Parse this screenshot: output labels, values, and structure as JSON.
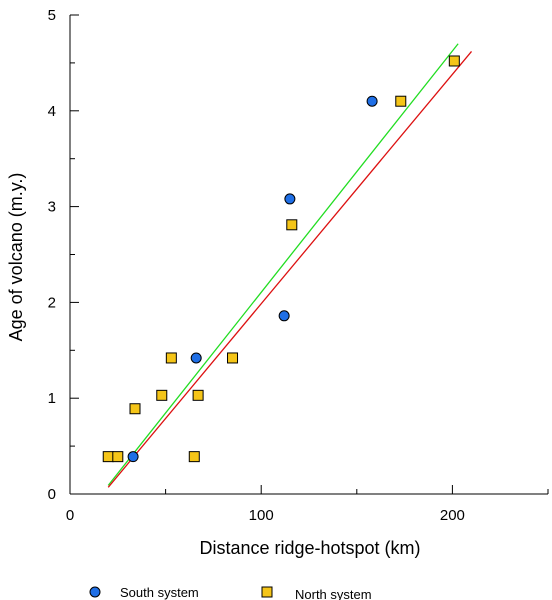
{
  "chart_data": {
    "type": "scatter",
    "xlabel": "Distance ridge-hotspot (km)",
    "ylabel": "Age of volcano (m.y.)",
    "xlim": [
      0,
      250
    ],
    "ylim": [
      0,
      5
    ],
    "xticks": [
      0,
      100,
      200
    ],
    "yticks": [
      0,
      1,
      2,
      3,
      4,
      5
    ],
    "grid": false,
    "legend_position": "bottom",
    "series": [
      {
        "name": "South system",
        "marker": "circle",
        "color": "#1f6fe6",
        "points": [
          {
            "x": 33,
            "y": 0.39
          },
          {
            "x": 66,
            "y": 1.42
          },
          {
            "x": 112,
            "y": 1.86
          },
          {
            "x": 115,
            "y": 3.08
          },
          {
            "x": 158,
            "y": 4.1
          }
        ]
      },
      {
        "name": "North system",
        "marker": "square",
        "color": "#f5c518",
        "points": [
          {
            "x": 20,
            "y": 0.39
          },
          {
            "x": 25,
            "y": 0.39
          },
          {
            "x": 34,
            "y": 0.89
          },
          {
            "x": 48,
            "y": 1.03
          },
          {
            "x": 53,
            "y": 1.42
          },
          {
            "x": 65,
            "y": 0.39
          },
          {
            "x": 67,
            "y": 1.03
          },
          {
            "x": 85,
            "y": 1.42
          },
          {
            "x": 116,
            "y": 2.81
          },
          {
            "x": 173,
            "y": 4.1
          },
          {
            "x": 201,
            "y": 4.52
          }
        ]
      }
    ],
    "fit_lines": [
      {
        "color": "#22dd22",
        "x": [
          20,
          203
        ],
        "y": [
          0.09,
          4.7
        ]
      },
      {
        "color": "#dd1111",
        "x": [
          20,
          210
        ],
        "y": [
          0.07,
          4.62
        ]
      }
    ]
  }
}
